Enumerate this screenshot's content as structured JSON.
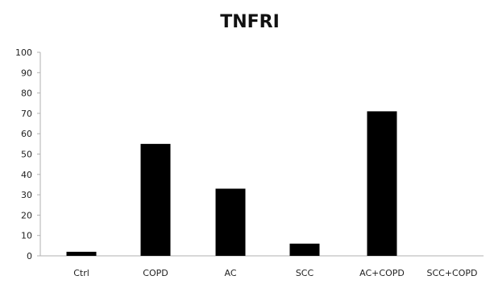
{
  "chart_data": {
    "type": "bar",
    "title": "TNFRI",
    "xlabel": "",
    "ylabel": "",
    "categories": [
      "Ctrl",
      "COPD",
      "AC",
      "SCC",
      "AC+COPD",
      "SCC+COPD"
    ],
    "values": [
      2,
      55,
      33,
      6,
      71,
      0
    ],
    "ylim": [
      0,
      100
    ],
    "yticks": [
      0,
      10,
      20,
      30,
      40,
      50,
      60,
      70,
      80,
      90,
      100
    ],
    "grid": false,
    "legend": "none",
    "bar_color": "#000000",
    "axis_color": "#b0b0b0"
  }
}
